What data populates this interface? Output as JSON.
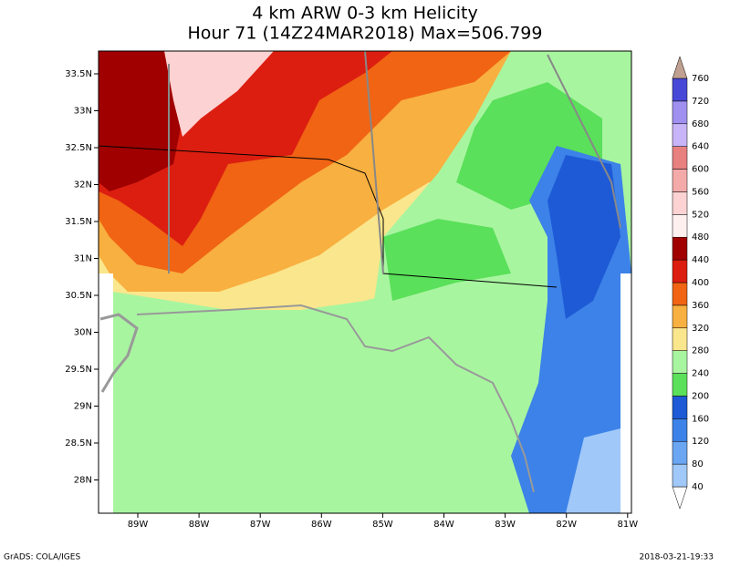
{
  "header": {
    "title_line1": "4 km ARW 0-3 km Helicity",
    "title_line2": "Hour 71 (14Z24MAR2018) Max=506.799"
  },
  "map": {
    "lat_labels": [
      "33.5N",
      "33N",
      "32.5N",
      "32N",
      "31.5N",
      "31N",
      "30.5N",
      "30N",
      "29.5N",
      "29N",
      "28.5N",
      "28N"
    ],
    "lon_labels": [
      "89W",
      "88W",
      "87W",
      "86W",
      "85W",
      "84W",
      "83W",
      "82W",
      "81W"
    ]
  },
  "colorbar": {
    "levels": [
      40,
      80,
      120,
      160,
      200,
      240,
      280,
      320,
      360,
      400,
      440,
      480,
      520,
      560,
      600,
      640,
      680,
      720,
      760
    ],
    "colors": [
      "#ffffff",
      "#a0c8f8",
      "#6aa6f2",
      "#3c82e8",
      "#1e5ad6",
      "#5ae05a",
      "#a8f5a0",
      "#fae68c",
      "#f8b040",
      "#f06414",
      "#dc1e10",
      "#a00000",
      "#fff0f0",
      "#fcd2d2",
      "#f5aaaa",
      "#e88080",
      "#c8b4f8",
      "#a090f0",
      "#4848d8",
      "#c0a090"
    ]
  },
  "footer": {
    "left": "GrADS: COLA/IGES",
    "right": "2018-03-21-19:33"
  }
}
